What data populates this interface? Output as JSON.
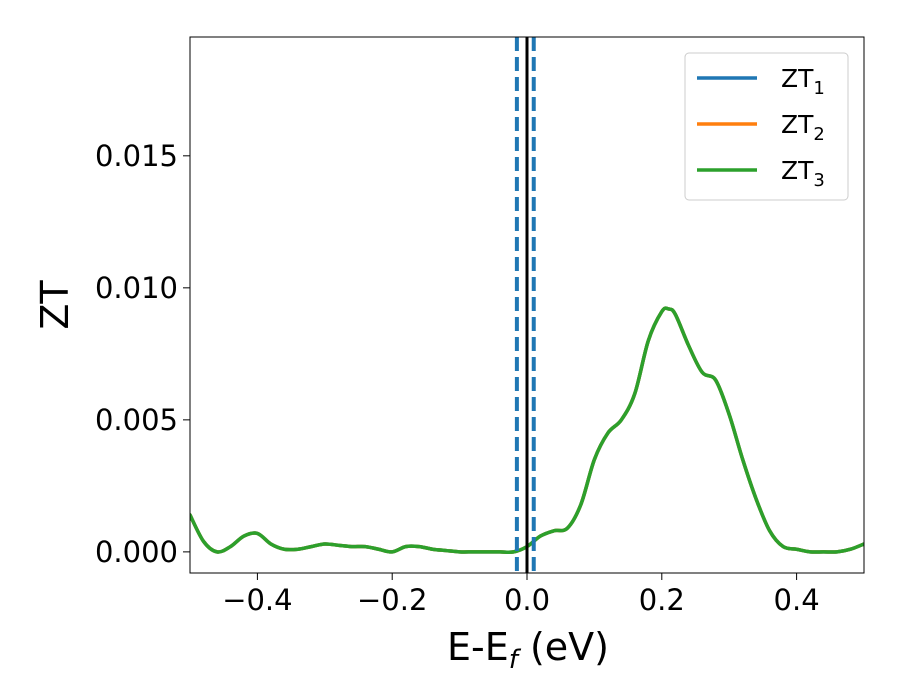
{
  "chart_data": {
    "type": "line",
    "title": "",
    "xlabel": {
      "main": "E-E",
      "sub": "f",
      "suffix": " (eV)"
    },
    "ylabel": "ZT",
    "xlim": [
      -0.5,
      0.5
    ],
    "ylim": [
      -0.0008,
      0.0195
    ],
    "xticks": [
      -0.4,
      -0.2,
      0.0,
      0.2,
      0.4
    ],
    "xtick_labels": [
      "−0.4",
      "−0.2",
      "0.0",
      "0.2",
      "0.4"
    ],
    "yticks": [
      0.0,
      0.005,
      0.01,
      0.015
    ],
    "ytick_labels": [
      "0.000",
      "0.005",
      "0.010",
      "0.015"
    ],
    "grid": false,
    "legend_position": "top-right",
    "series": [
      {
        "name": "ZT",
        "subscript": "1",
        "color": "#1f77b4",
        "x": [
          -0.5,
          -0.48,
          -0.46,
          -0.44,
          -0.42,
          -0.4,
          -0.38,
          -0.36,
          -0.34,
          -0.32,
          -0.3,
          -0.28,
          -0.26,
          -0.24,
          -0.22,
          -0.2,
          -0.18,
          -0.16,
          -0.14,
          -0.12,
          -0.1,
          -0.08,
          -0.06,
          -0.04,
          -0.02,
          0.0,
          0.02,
          0.04,
          0.06,
          0.08,
          0.1,
          0.12,
          0.14,
          0.16,
          0.18,
          0.2,
          0.21,
          0.22,
          0.24,
          0.26,
          0.28,
          0.3,
          0.32,
          0.34,
          0.36,
          0.38,
          0.4,
          0.42,
          0.44,
          0.46,
          0.48,
          0.5
        ],
        "y": [
          0.0014,
          0.0004,
          0.0,
          0.0002,
          0.0006,
          0.0007,
          0.0003,
          0.0001,
          0.0001,
          0.0002,
          0.0003,
          0.00025,
          0.0002,
          0.0002,
          0.0001,
          0.0,
          0.0002,
          0.0002,
          0.0001,
          5e-05,
          0.0,
          0.0,
          0.0,
          0.0,
          0.0,
          0.0002,
          0.0006,
          0.0008,
          0.0009,
          0.0018,
          0.0035,
          0.0045,
          0.005,
          0.006,
          0.008,
          0.0091,
          0.0092,
          0.009,
          0.0078,
          0.0068,
          0.0065,
          0.0052,
          0.0035,
          0.002,
          0.0008,
          0.0002,
          0.0001,
          0.0,
          0.0,
          0.0,
          0.0001,
          0.0003
        ]
      },
      {
        "name": "ZT",
        "subscript": "2",
        "color": "#ff7f0e",
        "x": [
          -0.5,
          -0.48,
          -0.46,
          -0.44,
          -0.42,
          -0.4,
          -0.38,
          -0.36,
          -0.34,
          -0.32,
          -0.3,
          -0.28,
          -0.26,
          -0.24,
          -0.22,
          -0.2,
          -0.18,
          -0.16,
          -0.14,
          -0.12,
          -0.1,
          -0.08,
          -0.06,
          -0.04,
          -0.02,
          0.0,
          0.02,
          0.04,
          0.06,
          0.08,
          0.1,
          0.12,
          0.14,
          0.16,
          0.18,
          0.2,
          0.21,
          0.22,
          0.24,
          0.26,
          0.28,
          0.3,
          0.32,
          0.34,
          0.36,
          0.38,
          0.4,
          0.42,
          0.44,
          0.46,
          0.48,
          0.5
        ],
        "y": [
          0.0014,
          0.0004,
          0.0,
          0.0002,
          0.0006,
          0.0007,
          0.0003,
          0.0001,
          0.0001,
          0.0002,
          0.0003,
          0.00025,
          0.0002,
          0.0002,
          0.0001,
          0.0,
          0.0002,
          0.0002,
          0.0001,
          5e-05,
          0.0,
          0.0,
          0.0,
          0.0,
          0.0,
          0.0002,
          0.0006,
          0.0008,
          0.0009,
          0.0018,
          0.0035,
          0.0045,
          0.005,
          0.006,
          0.008,
          0.0091,
          0.0092,
          0.009,
          0.0078,
          0.0068,
          0.0065,
          0.0052,
          0.0035,
          0.002,
          0.0008,
          0.0002,
          0.0001,
          0.0,
          0.0,
          0.0,
          0.0001,
          0.0003
        ]
      },
      {
        "name": "ZT",
        "subscript": "3",
        "color": "#2ca02c",
        "x": [
          -0.5,
          -0.48,
          -0.46,
          -0.44,
          -0.42,
          -0.4,
          -0.38,
          -0.36,
          -0.34,
          -0.32,
          -0.3,
          -0.28,
          -0.26,
          -0.24,
          -0.22,
          -0.2,
          -0.18,
          -0.16,
          -0.14,
          -0.12,
          -0.1,
          -0.08,
          -0.06,
          -0.04,
          -0.02,
          0.0,
          0.02,
          0.04,
          0.06,
          0.08,
          0.1,
          0.12,
          0.14,
          0.16,
          0.18,
          0.2,
          0.21,
          0.22,
          0.24,
          0.26,
          0.28,
          0.3,
          0.32,
          0.34,
          0.36,
          0.38,
          0.4,
          0.42,
          0.44,
          0.46,
          0.48,
          0.5
        ],
        "y": [
          0.0014,
          0.0004,
          0.0,
          0.0002,
          0.0006,
          0.0007,
          0.0003,
          0.0001,
          0.0001,
          0.0002,
          0.0003,
          0.00025,
          0.0002,
          0.0002,
          0.0001,
          0.0,
          0.0002,
          0.0002,
          0.0001,
          5e-05,
          0.0,
          0.0,
          0.0,
          0.0,
          0.0,
          0.0002,
          0.0006,
          0.0008,
          0.0009,
          0.0018,
          0.0035,
          0.0045,
          0.005,
          0.006,
          0.008,
          0.0091,
          0.0092,
          0.009,
          0.0078,
          0.0068,
          0.0065,
          0.0052,
          0.0035,
          0.002,
          0.0008,
          0.0002,
          0.0001,
          0.0,
          0.0,
          0.0,
          0.0001,
          0.0003
        ]
      }
    ],
    "vertical_lines": [
      {
        "x": -0.015,
        "style": "dashed",
        "color": "#1f77b4"
      },
      {
        "x": 0.0,
        "style": "solid",
        "color": "#000000"
      },
      {
        "x": 0.01,
        "style": "dashed",
        "color": "#1f77b4"
      }
    ]
  }
}
